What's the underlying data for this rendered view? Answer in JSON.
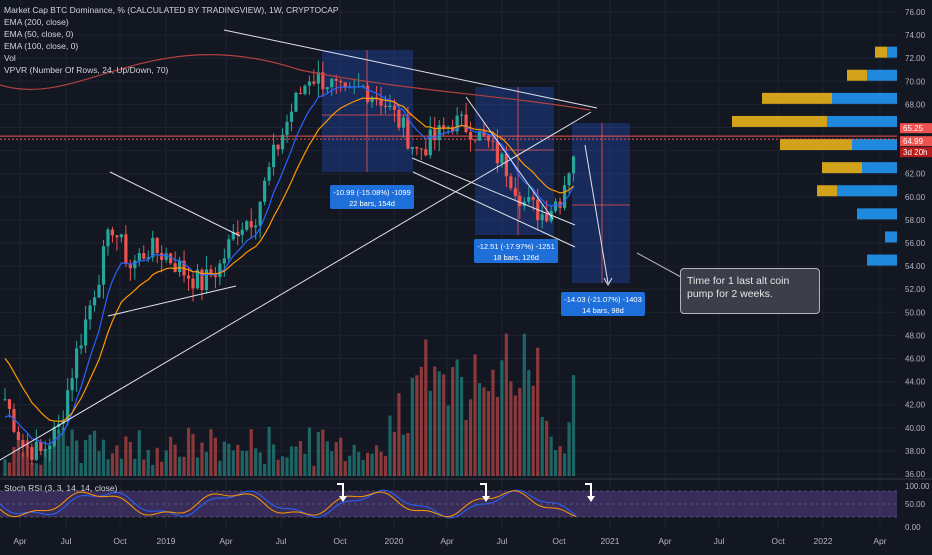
{
  "legend": {
    "title": "Market Cap BTC Dominance, % (CALCULATED BY TRADINGVIEW), 1W, CRYPTOCAP",
    "ema200": "EMA (200, close)",
    "ema50": "EMA (50, close, 0)",
    "ema100": "EMA (100, close, 0)",
    "vol": "Vol",
    "vpvr": "VPVR (Number Of Rows, 24, Up/Down, 70)"
  },
  "stoch_label": "Stoch RSI (3, 3, 14, 14, close)",
  "callout_text": "Time for 1 last alt coin pump for 2 weeks.",
  "measures": [
    {
      "line1": "-10.99 (-15.08%) -1099",
      "line2": "22 bars, 154d"
    },
    {
      "line1": "-12.51 (-17.97%) -1251",
      "line2": "18 bars, 126d"
    },
    {
      "line1": "-14.03 (-21.07%) -1403",
      "line2": "14 bars, 98d"
    }
  ],
  "price_axis": [
    "76.00",
    "74.00",
    "72.00",
    "70.00",
    "68.00",
    "66.00",
    "64.00",
    "62.00",
    "60.00",
    "58.00",
    "56.00",
    "54.00",
    "52.00",
    "50.00",
    "48.00",
    "46.00",
    "44.00",
    "42.00",
    "40.00",
    "38.00",
    "36.00"
  ],
  "price_tags": {
    "upper": "65.25",
    "lower": "64.99",
    "countdown": "3d 20h"
  },
  "stoch_axis": [
    "100.00",
    "50.00",
    "0.00"
  ],
  "time_axis": [
    "Apr",
    "Jul",
    "Oct",
    "2019",
    "Apr",
    "Jul",
    "Oct",
    "2020",
    "Apr",
    "Jul",
    "Oct",
    "2021",
    "Apr",
    "Jul",
    "Oct",
    "2022",
    "Apr"
  ],
  "colors": {
    "bg": "#131722",
    "up": "#26a69a",
    "down": "#ef5350",
    "ema50": "#2962ff",
    "ema100": "#ff9800",
    "ema200": "#b0413e",
    "stoch": "#7e57c2",
    "measure": "#1e6fd9",
    "vpvr_up": "#2196f3",
    "vpvr_down": "#e8b21a"
  },
  "chart_data": {
    "type": "candlestick",
    "title": "Market Cap BTC Dominance, % (CALCULATED BY TRADINGVIEW), 1W, CRYPTOCAP",
    "ylim": [
      36,
      77
    ],
    "x_range": [
      "2018-03",
      "2022-05"
    ],
    "close_series": [
      {
        "date": "2018-03",
        "close": 42.5
      },
      {
        "date": "2018-04",
        "close": 38.5
      },
      {
        "date": "2018-05",
        "close": 37.8
      },
      {
        "date": "2018-06",
        "close": 40.0
      },
      {
        "date": "2018-07",
        "close": 46.5
      },
      {
        "date": "2018-08",
        "close": 52.0
      },
      {
        "date": "2018-09",
        "close": 57.5
      },
      {
        "date": "2018-10",
        "close": 54.0
      },
      {
        "date": "2018-11",
        "close": 55.5
      },
      {
        "date": "2018-12",
        "close": 55.0
      },
      {
        "date": "2019-01",
        "close": 53.5
      },
      {
        "date": "2019-02",
        "close": 52.5
      },
      {
        "date": "2019-03",
        "close": 54.0
      },
      {
        "date": "2019-04",
        "close": 57.5
      },
      {
        "date": "2019-05",
        "close": 58.5
      },
      {
        "date": "2019-06",
        "close": 63.5
      },
      {
        "date": "2019-07",
        "close": 67.5
      },
      {
        "date": "2019-08",
        "close": 70.5
      },
      {
        "date": "2019-09",
        "close": 70.0
      },
      {
        "date": "2019-10",
        "close": 68.5
      },
      {
        "date": "2019-11",
        "close": 69.5
      },
      {
        "date": "2019-12",
        "close": 68.5
      },
      {
        "date": "2020-01",
        "close": 66.5
      },
      {
        "date": "2020-02",
        "close": 64.0
      },
      {
        "date": "2020-03",
        "close": 65.0
      },
      {
        "date": "2020-04",
        "close": 66.5
      },
      {
        "date": "2020-05",
        "close": 66.0
      },
      {
        "date": "2020-06",
        "close": 64.5
      },
      {
        "date": "2020-07",
        "close": 62.5
      },
      {
        "date": "2020-08",
        "close": 59.5
      },
      {
        "date": "2020-09",
        "close": 58.5
      },
      {
        "date": "2020-10",
        "close": 60.0
      },
      {
        "date": "2020-11",
        "close": 65.25
      }
    ]
  }
}
